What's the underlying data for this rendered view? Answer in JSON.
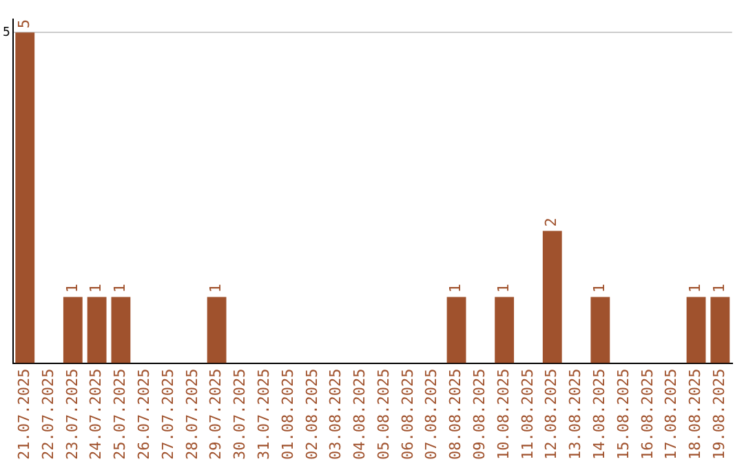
{
  "chart_data": {
    "type": "bar",
    "categories": [
      "21.07.2025",
      "22.07.2025",
      "23.07.2025",
      "24.07.2025",
      "25.07.2025",
      "26.07.2025",
      "27.07.2025",
      "28.07.2025",
      "29.07.2025",
      "30.07.2025",
      "31.07.2025",
      "01.08.2025",
      "02.08.2025",
      "03.08.2025",
      "04.08.2025",
      "05.08.2025",
      "06.08.2025",
      "07.08.2025",
      "08.08.2025",
      "09.08.2025",
      "10.08.2025",
      "11.08.2025",
      "12.08.2025",
      "13.08.2025",
      "14.08.2025",
      "15.08.2025",
      "16.08.2025",
      "17.08.2025",
      "18.08.2025",
      "19.08.2025"
    ],
    "values": [
      5,
      0,
      1,
      1,
      1,
      0,
      0,
      0,
      1,
      0,
      0,
      0,
      0,
      0,
      0,
      0,
      0,
      0,
      1,
      0,
      1,
      0,
      2,
      0,
      1,
      0,
      0,
      0,
      1,
      1
    ],
    "value_labels": [
      "5",
      null,
      "1",
      "1",
      "1",
      null,
      null,
      null,
      "1",
      null,
      null,
      null,
      null,
      null,
      null,
      null,
      null,
      null,
      "1",
      null,
      "1",
      null,
      "2",
      null,
      "1",
      null,
      null,
      null,
      "1",
      "1"
    ],
    "color": "#a0522d",
    "ylim": [
      0,
      5.2
    ],
    "yticks": [
      5
    ],
    "grid": "y",
    "legend": false
  }
}
